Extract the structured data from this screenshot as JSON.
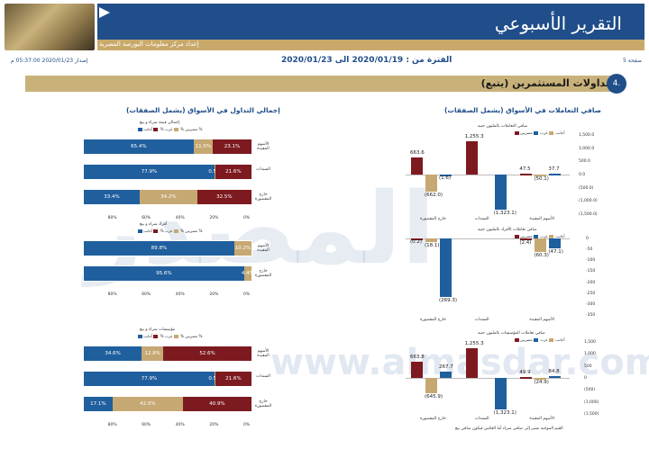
{
  "header": {
    "title": "التقرير الأسبوعي",
    "subtitle": "إعداد مركز معلومات البورصة المصرية",
    "page": "صفحة 5",
    "period": "الفترة من : 2020/01/19 الى 2020/01/23",
    "issued": "إصدار 2020/01/23 05:37:00 م"
  },
  "section": {
    "num": "4.",
    "title": "تداولات المستثمرين (يتبع)"
  },
  "left_panel": {
    "title": "إجمالي التداول في الأسواق (يشمل الصفقات)",
    "legend": [
      "مصريين %",
      "عرب %",
      "أجانب %"
    ],
    "groups": [
      {
        "subtitle": "إجمالي قيمة شراء و بيع",
        "rows": [
          {
            "label": "الأسهم المقيدة",
            "blue": 65.4,
            "tan": 11.5,
            "maroon": 23.1,
            "blue_label": "65.4%",
            "tan_label": "11.5%",
            "maroon_label": "23.1%"
          },
          {
            "label": "السندات",
            "blue": 77.9,
            "tan": 0.5,
            "maroon": 21.6,
            "blue_label": "77.9%",
            "tan_label": "0.5%",
            "maroon_label": "21.6%"
          },
          {
            "label": "خارج المقصورة",
            "blue": 33.4,
            "tan": 34.2,
            "maroon": 32.5,
            "blue_label": "33.4%",
            "tan_label": "34.2%",
            "maroon_label": "32.5%"
          }
        ],
        "ticks": [
          "0%",
          "20%",
          "40%",
          "60%",
          "80%"
        ]
      },
      {
        "subtitle": "أفراد شراء و بيع",
        "rows": [
          {
            "label": "الأسهم المقيدة",
            "blue": 89.8,
            "tan": 10.2,
            "maroon": 0,
            "blue_label": "89.8%",
            "tan_label": "10.2%",
            "maroon_label": ""
          },
          {
            "label": "خارج المقصورة",
            "blue": 95.6,
            "tan": 4.4,
            "maroon": 0,
            "blue_label": "95.6%",
            "tan_label": "4.4%",
            "maroon_label": ""
          }
        ],
        "ticks": [
          "0%",
          "20%",
          "40%",
          "60%",
          "80%"
        ]
      },
      {
        "subtitle": "مؤسسات شراء و بيع",
        "rows": [
          {
            "label": "الأسهم المقيدة",
            "blue": 34.6,
            "tan": 12.8,
            "maroon": 52.6,
            "blue_label": "34.6%",
            "tan_label": "12.8%",
            "maroon_label": "52.6%"
          },
          {
            "label": "السندات",
            "blue": 77.9,
            "tan": 0.5,
            "maroon": 21.6,
            "blue_label": "77.9%",
            "tan_label": "0.5%",
            "maroon_label": "21.6%"
          },
          {
            "label": "خارج المقصورة",
            "blue": 17.1,
            "tan": 42.0,
            "maroon": 40.9,
            "blue_label": "17.1%",
            "tan_label": "42.0%",
            "maroon_label": "40.9%"
          }
        ],
        "ticks": [
          "0%",
          "20%",
          "40%",
          "60%",
          "80%"
        ]
      }
    ]
  },
  "right_panel": {
    "title": "صافي التعاملات في الأسواق (يشمل الصفقات)",
    "footnote": "القيم الموجبة تشير إلى صافي شراء أما العكس فيكون صافي بيع"
  },
  "chart_data": [
    {
      "type": "bar",
      "title": "صافي التعاملات بالمليون جنيه",
      "categories": [
        "خارج المقصورة",
        "السندات",
        "الأسهم المقيدة"
      ],
      "series": [
        {
          "name": "مصريين",
          "values": [
            -1.6,
            -1323.1,
            37.7
          ]
        },
        {
          "name": "عرب",
          "values": [
            -662.0,
            0,
            -50.1
          ]
        },
        {
          "name": "أجانب",
          "values": [
            663.6,
            1255.3,
            47.5
          ]
        }
      ],
      "value_labels": [
        "663.6",
        "(662.0)",
        "(1.6)",
        "1,255.3",
        "(1,323.1)",
        "47.5",
        "(50.1)",
        "37.7"
      ],
      "ticks": [
        "1,500.0",
        "1,000.0",
        "500.0",
        "0.0",
        "(500.0)",
        "(1,000.0)",
        "(1,500.0)"
      ],
      "ylim": [
        -1500,
        1500
      ]
    },
    {
      "type": "bar",
      "title": "صافي تعاملات الأفراد بالمليون جنيه",
      "categories": [
        "خارج المقصورة",
        "السندات",
        "الأسهم المقيدة"
      ],
      "series": [
        {
          "name": "مصريين",
          "values": [
            -269.3,
            0,
            -47.1
          ]
        },
        {
          "name": "عرب",
          "values": [
            -18.1,
            0,
            -60.3
          ]
        },
        {
          "name": "أجانب",
          "values": [
            -0.2,
            0,
            -2.4
          ]
        }
      ],
      "value_labels": [
        "(0.2)",
        "(18.1)",
        "(269.3)",
        "(2.4)",
        "(60.3)",
        "(47.1)"
      ],
      "ticks": [
        "0",
        "-50",
        "-100",
        "-150",
        "-200",
        "-250",
        "-300",
        "-350"
      ],
      "ylim": [
        -350,
        0
      ]
    },
    {
      "type": "bar",
      "title": "صافي تعاملات المؤسسات بالمليون جنيه",
      "categories": [
        "خارج المقصورة",
        "السندات",
        "الأسهم المقيدة"
      ],
      "series": [
        {
          "name": "مصريين",
          "values": [
            267.7,
            -1323.1,
            84.8
          ]
        },
        {
          "name": "عرب",
          "values": [
            -645.9,
            0,
            -24.9
          ]
        },
        {
          "name": "أجانب",
          "values": [
            663.8,
            1255.3,
            49.9
          ]
        }
      ],
      "value_labels": [
        "663.8",
        "(645.9)",
        "267.7",
        "1,255.3",
        "(1,323.1)",
        "49.9",
        "(24.9)",
        "84.8"
      ],
      "ticks": [
        "1,500",
        "1,000",
        "500",
        "0",
        "(500)",
        "(1,000)",
        "(1,500)"
      ],
      "ylim": [
        -1500,
        1500
      ]
    }
  ],
  "watermark": {
    "big": "المصدر",
    "url": "www.almasdar.com"
  },
  "colors": {
    "blue": "#1f5f9e",
    "tan": "#c6a872",
    "maroon": "#7d1a1f",
    "header": "#1f4e8a"
  }
}
